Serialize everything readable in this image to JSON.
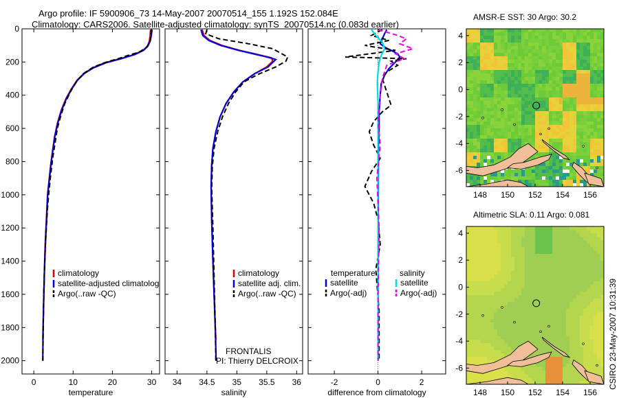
{
  "figure": {
    "title_line1": "Argo profile: IF 5900906_73 14-May-2007 20070514_155 1.192S 152.084E",
    "title_line2": "Climatology: CARS2006. Satellite-adjusted climatology: synTS_20070514.nc (0.083d earlier)",
    "credit": "CSIRO 23-May-2007 10:31:39"
  },
  "chart_data": [
    {
      "type": "line",
      "xlabel": "temperature",
      "ylabel": "",
      "xlim": [
        -3,
        32
      ],
      "ylim": [
        0,
        2080
      ],
      "y_reversed": true,
      "xticks": [
        0,
        10,
        20,
        30
      ],
      "yticks": [
        0,
        200,
        400,
        600,
        800,
        1000,
        1200,
        1400,
        1600,
        1800,
        2000
      ],
      "legend": [
        "climatology",
        "satellite-adjusted climatolog",
        "Argo(..raw -QC)"
      ],
      "series": [
        {
          "name": "climatology",
          "color": "#dd0000",
          "dash": false,
          "x": [
            29.7,
            29.6,
            29.4,
            28.9,
            27.8,
            25.5,
            22.0,
            18.0,
            15.0,
            12.7,
            11.0,
            9.6,
            8.2,
            7.0,
            6.0,
            5.3,
            4.8,
            4.3,
            3.9,
            3.5,
            3.2,
            2.9,
            2.7,
            2.55,
            2.45,
            2.35,
            2.3,
            2.28
          ],
          "y": [
            5,
            40,
            75,
            105,
            130,
            155,
            180,
            205,
            235,
            270,
            310,
            360,
            420,
            490,
            570,
            650,
            730,
            820,
            910,
            1000,
            1150,
            1300,
            1450,
            1600,
            1720,
            1800,
            1860,
            1875
          ]
        },
        {
          "name": "satellite-adjusted climatolog",
          "color": "#0000dd",
          "dash": false,
          "x": [
            30.1,
            29.9,
            29.6,
            29.0,
            27.9,
            25.7,
            22.3,
            18.3,
            15.2,
            12.8,
            11.1,
            9.7,
            8.3,
            7.1,
            6.1,
            5.35,
            4.85,
            4.35,
            3.95,
            3.55,
            3.25,
            2.95,
            2.72,
            2.55,
            2.45,
            2.35,
            2.3,
            2.28
          ],
          "y": [
            5,
            40,
            75,
            105,
            130,
            155,
            180,
            205,
            235,
            270,
            310,
            360,
            420,
            490,
            570,
            650,
            730,
            820,
            910,
            1000,
            1150,
            1300,
            1450,
            1600,
            1720,
            1850,
            1950,
            2000
          ]
        },
        {
          "name": "Argo(..raw -QC)",
          "color": "#000000",
          "dash": true,
          "x": [
            29.9,
            29.8,
            29.7,
            29.3,
            28.5,
            26.8,
            24.0,
            21.5,
            18.5,
            15.2,
            12.6,
            10.8,
            9.3,
            7.9,
            6.9,
            6.0,
            5.4,
            4.8,
            4.3,
            3.9,
            3.5,
            3.2,
            2.9,
            2.7,
            2.55,
            2.45,
            2.35,
            2.3
          ],
          "y": [
            5,
            30,
            60,
            90,
            115,
            140,
            160,
            180,
            200,
            230,
            270,
            320,
            380,
            450,
            520,
            600,
            690,
            780,
            880,
            970,
            1080,
            1200,
            1330,
            1460,
            1600,
            1740,
            1880,
            2000
          ]
        }
      ]
    },
    {
      "type": "line",
      "xlabel": "salinity",
      "ylabel": "",
      "xlim": [
        33.8,
        36.1
      ],
      "ylim": [
        0,
        2080
      ],
      "y_reversed": true,
      "xticks": [
        34,
        34.5,
        35,
        35.5,
        36
      ],
      "legend": [
        "climatology",
        "satellite adj. clim.",
        "Argo(..raw -QC)"
      ],
      "annotations": [
        "FRONTALIS",
        "PI: Thierry DELCROIX"
      ],
      "series": [
        {
          "name": "climatology",
          "color": "#dd0000",
          "dash": false,
          "x": [
            34.42,
            34.45,
            34.55,
            34.75,
            35.05,
            35.35,
            35.58,
            35.6,
            35.5,
            35.3,
            35.1,
            34.95,
            34.82,
            34.72,
            34.65,
            34.6,
            34.58,
            34.57,
            34.58,
            34.6,
            34.62,
            34.64,
            34.65
          ],
          "y": [
            5,
            40,
            70,
            100,
            130,
            155,
            175,
            195,
            230,
            270,
            320,
            380,
            450,
            530,
            620,
            720,
            820,
            950,
            1150,
            1400,
            1600,
            1800,
            1875
          ]
        },
        {
          "name": "satellite adj. clim.",
          "color": "#0000dd",
          "dash": false,
          "x": [
            34.4,
            34.43,
            34.53,
            34.73,
            35.03,
            35.33,
            35.56,
            35.65,
            35.52,
            35.3,
            35.1,
            34.95,
            34.82,
            34.72,
            34.65,
            34.6,
            34.58,
            34.57,
            34.58,
            34.6,
            34.62,
            34.64,
            34.65,
            34.65
          ],
          "y": [
            5,
            40,
            70,
            100,
            130,
            155,
            175,
            185,
            230,
            270,
            320,
            380,
            450,
            530,
            620,
            720,
            820,
            950,
            1150,
            1400,
            1600,
            1800,
            1950,
            2000
          ]
        },
        {
          "name": "Argo(..raw -QC)",
          "color": "#000000",
          "dash": true,
          "x": [
            34.5,
            34.48,
            34.7,
            35.2,
            35.6,
            35.75,
            35.85,
            35.82,
            35.65,
            35.35,
            35.12,
            34.98,
            34.86,
            34.76,
            34.68,
            34.62,
            34.59,
            34.58,
            34.6,
            34.62,
            34.64,
            34.65
          ],
          "y": [
            5,
            30,
            60,
            90,
            120,
            150,
            170,
            195,
            230,
            275,
            320,
            380,
            450,
            530,
            620,
            720,
            830,
            960,
            1200,
            1500,
            1800,
            2000
          ]
        }
      ]
    },
    {
      "type": "line",
      "xlabel": "difference from climatology",
      "ylabel": "",
      "xlim": [
        -3.2,
        3.1
      ],
      "ylim": [
        0,
        2080
      ],
      "y_reversed": true,
      "xticks": [
        -2,
        0,
        2
      ],
      "legend": [
        "temperature",
        "satellite",
        "Argo(-adj)",
        "salinity",
        "satellite",
        "Argo(-adj)"
      ],
      "series": [
        {
          "name": "temperature satellite",
          "color": "#0000dd",
          "dash": false,
          "x": [
            0.4,
            0.3,
            0.2,
            0.1,
            0.3,
            0.6,
            0.9,
            1.0,
            0.8,
            0.5,
            0.3,
            0.15,
            0.1,
            0.05,
            0.05,
            0.02,
            0.02,
            0.01,
            0.01,
            0,
            0,
            0
          ],
          "y": [
            5,
            30,
            60,
            90,
            110,
            130,
            150,
            170,
            200,
            240,
            280,
            330,
            400,
            500,
            600,
            700,
            800,
            1000,
            1200,
            1500,
            1800,
            2000
          ]
        },
        {
          "name": "temperature Argo(-adj)",
          "color": "#000000",
          "dash": true,
          "x": [
            0.2,
            -0.3,
            0.5,
            -0.6,
            0.8,
            -1.5,
            1.3,
            0.6,
            0.9,
            0.4,
            0.2,
            0.4,
            0.6,
            0.2,
            -0.2,
            -0.4,
            -0.2,
            0.1,
            -0.3,
            -0.6,
            -0.2,
            0.0,
            0.1,
            -0.1,
            0.05,
            0.05
          ],
          "y": [
            5,
            40,
            70,
            100,
            130,
            170,
            180,
            195,
            220,
            260,
            300,
            380,
            460,
            500,
            560,
            620,
            700,
            780,
            860,
            950,
            1050,
            1150,
            1300,
            1450,
            1700,
            2000
          ]
        },
        {
          "name": "salinity satellite",
          "color": "#00dddd",
          "dash": false,
          "x": [
            -0.3,
            -0.1,
            0.2,
            0.3,
            0.15,
            0.05,
            0.0,
            -0.03,
            0.0,
            0.0,
            0.0,
            0.0
          ],
          "y": [
            5,
            40,
            80,
            120,
            160,
            200,
            260,
            320,
            450,
            800,
            1400,
            2000
          ]
        },
        {
          "name": "salinity Argo(-adj)",
          "color": "#ee00ee",
          "dash": true,
          "x": [
            0.0,
            0.9,
            1.3,
            1.0,
            1.6,
            0.8,
            1.2,
            0.4,
            0.2,
            0.1,
            0.0,
            0.1,
            -0.05,
            0.05,
            0.0,
            0.0
          ],
          "y": [
            5,
            40,
            60,
            90,
            120,
            150,
            180,
            220,
            300,
            400,
            550,
            700,
            900,
            1200,
            1600,
            2000
          ]
        }
      ]
    },
    {
      "type": "heatmap",
      "title": "AMSR-E SST: 30 Argo: 30.2",
      "xlim": [
        147,
        157
      ],
      "ylim": [
        -7.2,
        4.5
      ],
      "xticks": [
        148,
        150,
        152,
        154,
        156
      ],
      "yticks": [
        -6,
        -4,
        -2,
        0,
        2,
        4
      ],
      "marker": {
        "lon": 152.084,
        "lat": -1.192
      },
      "palette": "green-dominant SST field with yellow/orange warm spots"
    },
    {
      "type": "heatmap",
      "title": "Altimetric SLA: 0.11 Argo: 0.081",
      "xlim": [
        147,
        157
      ],
      "ylim": [
        -7.2,
        4.5
      ],
      "xticks": [
        148,
        150,
        152,
        154,
        156
      ],
      "yticks": [
        -6,
        -4,
        -2,
        0,
        2,
        4
      ],
      "marker": {
        "lon": 152.084,
        "lat": -1.192
      },
      "palette": "smooth yellow-green SLA field with orange anomaly near 153E, 6.5S"
    }
  ]
}
